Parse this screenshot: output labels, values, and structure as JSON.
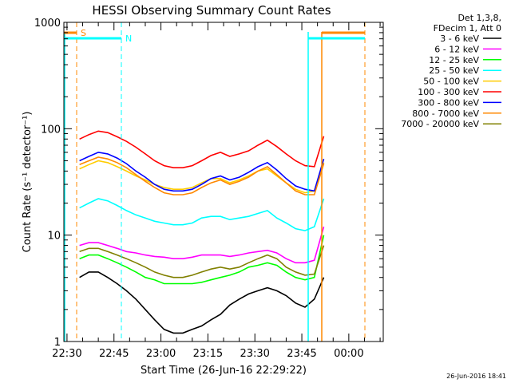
{
  "chart_data": {
    "type": "line",
    "title": "HESSI Observing Summary Count Rates",
    "xlabel": "Start Time (26-Jun-16 22:29:22)",
    "ylabel": "Count Rate (s⁻¹ detector⁻¹)",
    "yscale": "log",
    "ylim": [
      1,
      1000
    ],
    "xlim": [
      "22:29",
      "00:11"
    ],
    "x_ticks": [
      "22:30",
      "22:45",
      "23:00",
      "23:15",
      "23:30",
      "23:45",
      "00:00"
    ],
    "y_ticks": [
      "1",
      "10",
      "100",
      "1000"
    ],
    "legend_header": [
      "Det 1,3,8,",
      "FDecim 1, Att 0"
    ],
    "legend_position": "right",
    "timestamp": "26-Jun-2016 18:41",
    "x": [
      "22:34",
      "22:37",
      "22:40",
      "22:43",
      "22:46",
      "22:49",
      "22:52",
      "22:55",
      "22:58",
      "23:01",
      "23:04",
      "23:07",
      "23:10",
      "23:13",
      "23:16",
      "23:19",
      "23:22",
      "23:25",
      "23:28",
      "23:31",
      "23:34",
      "23:37",
      "23:40",
      "23:43",
      "23:46",
      "23:49",
      "23:52"
    ],
    "series": [
      {
        "name": "3 - 6 keV",
        "color": "#000000",
        "values": [
          4,
          4.5,
          4.5,
          4,
          3.5,
          3,
          2.5,
          2,
          1.6,
          1.3,
          1.2,
          1.2,
          1.3,
          1.4,
          1.6,
          1.8,
          2.2,
          2.5,
          2.8,
          3,
          3.2,
          3,
          2.7,
          2.3,
          2.1,
          2.5,
          4
        ]
      },
      {
        "name": "6 - 12 keV",
        "color": "#ff00ff",
        "values": [
          8,
          8.5,
          8.5,
          8,
          7.5,
          7,
          6.8,
          6.5,
          6.3,
          6.2,
          6,
          6,
          6.2,
          6.5,
          6.5,
          6.5,
          6.3,
          6.5,
          6.8,
          7,
          7.2,
          6.8,
          6,
          5.5,
          5.5,
          5.8,
          12
        ]
      },
      {
        "name": "12 - 25 keV",
        "color": "#00ff00",
        "values": [
          6,
          6.5,
          6.5,
          6,
          5.5,
          5,
          4.5,
          4,
          3.8,
          3.5,
          3.5,
          3.5,
          3.5,
          3.6,
          3.8,
          4,
          4.2,
          4.5,
          5,
          5.2,
          5.5,
          5.2,
          4.5,
          4,
          3.8,
          4,
          10
        ]
      },
      {
        "name": "25 - 50 keV",
        "color": "#00ffff",
        "values": [
          18,
          20,
          22,
          21,
          19,
          17,
          15.5,
          14.5,
          13.5,
          13,
          12.5,
          12.5,
          13,
          14.5,
          15,
          15,
          14,
          14.5,
          15,
          16,
          17,
          14.5,
          13,
          11.5,
          11,
          12,
          22
        ]
      },
      {
        "name": "50 - 100 keV",
        "color": "#ffcc00",
        "values": [
          42,
          46,
          50,
          48,
          44,
          40,
          36,
          33,
          30,
          28,
          27,
          27,
          28,
          31,
          34,
          34,
          31,
          33,
          36,
          40,
          42,
          36,
          31,
          27,
          25,
          26,
          48
        ]
      },
      {
        "name": "100 - 300 keV",
        "color": "#ff0000",
        "values": [
          80,
          88,
          95,
          92,
          84,
          76,
          67,
          58,
          50,
          45,
          43,
          43,
          45,
          50,
          56,
          60,
          55,
          58,
          62,
          70,
          78,
          68,
          58,
          50,
          45,
          44,
          85
        ]
      },
      {
        "name": "300 - 800 keV",
        "color": "#0000ff",
        "values": [
          50,
          55,
          60,
          58,
          53,
          47,
          40,
          35,
          30,
          27,
          26,
          26,
          27,
          30,
          34,
          36,
          33,
          35,
          39,
          44,
          48,
          41,
          34,
          29,
          27,
          26,
          52
        ]
      },
      {
        "name": "800 - 7000 keV",
        "color": "#ff8800",
        "values": [
          46,
          50,
          54,
          52,
          48,
          43,
          37,
          32,
          28,
          25,
          24,
          24,
          25,
          28,
          31,
          33,
          30,
          32,
          35,
          40,
          44,
          37,
          31,
          26,
          24,
          24,
          47
        ]
      },
      {
        "name": "7000 - 20000 keV",
        "color": "#808000",
        "values": [
          7,
          7.5,
          7.5,
          7,
          6.5,
          6,
          5.5,
          5,
          4.5,
          4.2,
          4,
          4,
          4.2,
          4.5,
          4.8,
          5,
          4.8,
          5,
          5.5,
          6,
          6.5,
          6,
          5,
          4.5,
          4.2,
          4.3,
          8
        ]
      }
    ],
    "annotations": [
      {
        "label": "S",
        "color": "#ff8800"
      },
      {
        "label": "N",
        "color": "#00ffff"
      }
    ]
  }
}
